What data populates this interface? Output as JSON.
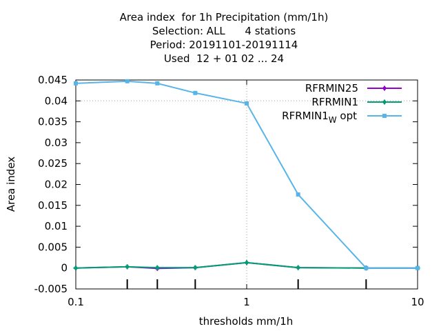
{
  "chart_data": {
    "type": "line",
    "title_lines": [
      "Area index  for 1h Precipitation (mm/1h)",
      "Selection: ALL      4 stations",
      "Period: 20191101-20191114",
      "Used  12 + 01 02 ... 24"
    ],
    "xlabel": "thresholds mm/1h",
    "ylabel": "Area index",
    "x_scale": "log",
    "xlim": [
      0.1,
      10
    ],
    "ylim": [
      -0.005,
      0.045
    ],
    "x_ticks": [
      {
        "value": 0.1,
        "label": "0.1"
      },
      {
        "value": 1,
        "label": "1"
      },
      {
        "value": 10,
        "label": "10"
      }
    ],
    "y_ticks": [
      {
        "value": -0.005,
        "label": "-0.005"
      },
      {
        "value": 0,
        "label": "0"
      },
      {
        "value": 0.005,
        "label": "0.005"
      },
      {
        "value": 0.01,
        "label": "0.01"
      },
      {
        "value": 0.015,
        "label": "0.015"
      },
      {
        "value": 0.02,
        "label": "0.02"
      },
      {
        "value": 0.025,
        "label": "0.025"
      },
      {
        "value": 0.03,
        "label": "0.03"
      },
      {
        "value": 0.035,
        "label": "0.035"
      },
      {
        "value": 0.04,
        "label": "0.04"
      },
      {
        "value": 0.045,
        "label": "0.045"
      }
    ],
    "x_extra_ticks": [
      0.2,
      0.3,
      0.5,
      2,
      5
    ],
    "grid_x": [
      1
    ],
    "grid_y": [
      0.04
    ],
    "x": [
      0.1,
      0.2,
      0.3,
      0.5,
      1,
      2,
      5,
      10
    ],
    "series": [
      {
        "name": "RFRMIN25",
        "color": "#9400d3",
        "marker": "cross",
        "values": [
          0.0,
          0.0003,
          -0.0001,
          0.0001,
          0.0013,
          0.0001,
          0.0,
          0.0
        ]
      },
      {
        "name": "RFRMIN1",
        "color": "#009e73",
        "marker": "cross",
        "values": [
          0.0,
          0.0003,
          0.0001,
          0.0001,
          0.0013,
          0.0001,
          0.0,
          0.0
        ]
      },
      {
        "name": "RFRMIN1",
        "name_sub": "W",
        "name_suffix": " opt",
        "color": "#56b4e9",
        "marker": "square",
        "values": [
          0.0442,
          0.0447,
          0.0442,
          0.0419,
          0.0394,
          0.0176,
          0.0,
          0.0
        ]
      }
    ],
    "legend_position": "top-right"
  }
}
